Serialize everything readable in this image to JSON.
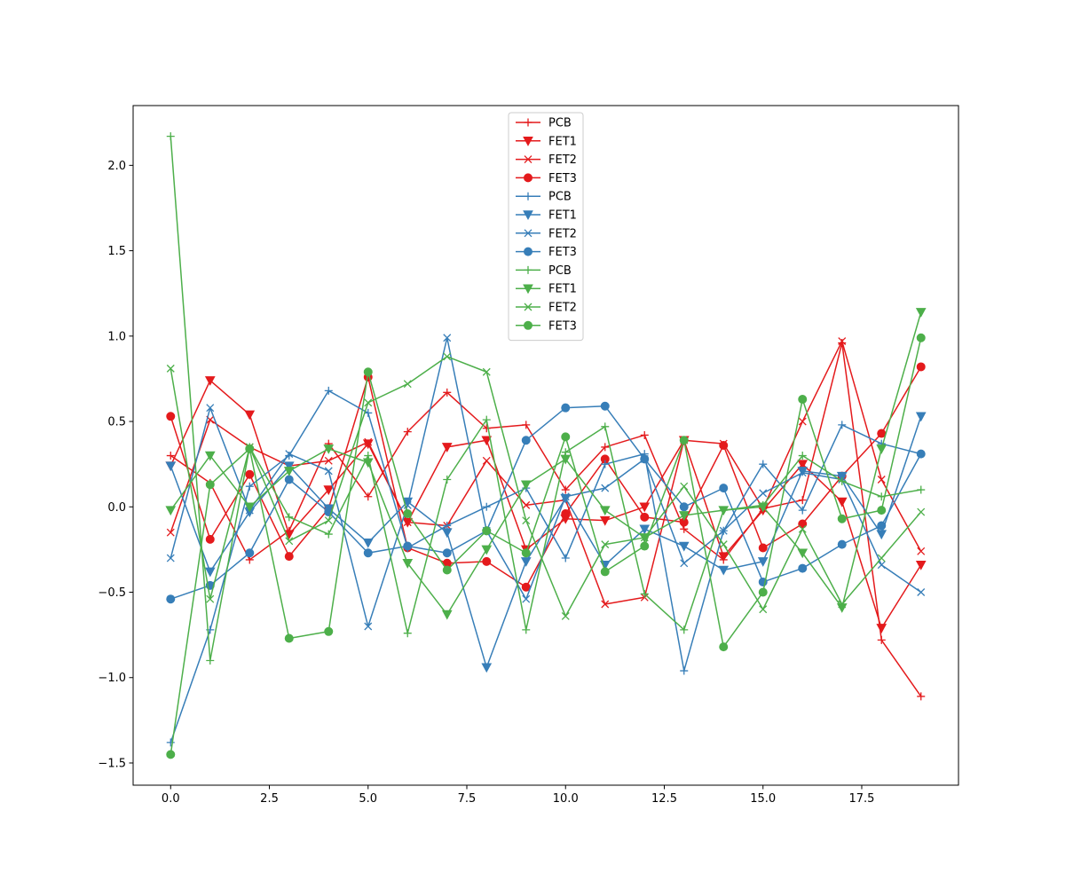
{
  "chart_data": {
    "type": "line",
    "title": "",
    "xlabel": "",
    "ylabel": "",
    "xlim": [
      -0.95,
      19.95
    ],
    "ylim": [
      -1.63,
      2.35
    ],
    "xticks": [
      0.0,
      2.5,
      5.0,
      7.5,
      10.0,
      12.5,
      15.0,
      17.5
    ],
    "xtick_labels": [
      "0.0",
      "2.5",
      "5.0",
      "7.5",
      "10.0",
      "12.5",
      "15.0",
      "17.5"
    ],
    "yticks": [
      -1.5,
      -1.0,
      -0.5,
      0.0,
      0.5,
      1.0,
      1.5,
      2.0
    ],
    "ytick_labels": [
      "−1.5",
      "−1.0",
      "−0.5",
      "0.0",
      "0.5",
      "1.0",
      "1.5",
      "2.0"
    ],
    "grid": false,
    "legend_position": "top-center",
    "x": [
      0,
      1,
      2,
      3,
      4,
      5,
      6,
      7,
      8,
      9,
      10,
      11,
      12,
      13,
      14,
      15,
      16,
      17,
      18,
      19
    ],
    "series": [
      {
        "name": "PCB",
        "color": "#e41a1c",
        "marker": "plus",
        "values": [
          0.3,
          0.14,
          -0.31,
          -0.14,
          0.37,
          0.06,
          0.44,
          0.67,
          0.46,
          0.48,
          0.1,
          0.35,
          0.42,
          -0.13,
          -0.31,
          -0.01,
          0.04,
          0.96,
          -0.78,
          -1.11
        ]
      },
      {
        "name": "FET1",
        "color": "#e41a1c",
        "marker": "triangle-down",
        "values": [
          0.24,
          0.74,
          0.54,
          -0.16,
          0.1,
          0.37,
          -0.09,
          0.35,
          0.39,
          -0.25,
          -0.07,
          -0.08,
          0.0,
          0.39,
          -0.29,
          -0.02,
          0.25,
          0.03,
          -0.71,
          -0.34
        ]
      },
      {
        "name": "FET2",
        "color": "#e41a1c",
        "marker": "x",
        "values": [
          -0.15,
          0.51,
          0.35,
          0.24,
          0.27,
          0.38,
          -0.09,
          -0.11,
          0.27,
          0.01,
          0.04,
          -0.57,
          -0.53,
          0.39,
          0.37,
          -0.01,
          0.5,
          0.97,
          0.16,
          -0.26
        ]
      },
      {
        "name": "FET3",
        "color": "#e41a1c",
        "marker": "circle",
        "values": [
          0.53,
          -0.19,
          0.19,
          -0.29,
          -0.01,
          0.76,
          -0.24,
          -0.33,
          -0.32,
          -0.47,
          -0.04,
          0.28,
          -0.06,
          -0.09,
          0.36,
          -0.24,
          -0.1,
          0.18,
          0.43,
          0.82
        ]
      },
      {
        "name": "PCB",
        "color": "#377eb8",
        "marker": "plus",
        "values": [
          -1.38,
          -0.72,
          0.12,
          0.3,
          0.68,
          0.55,
          -0.24,
          -0.11,
          0.0,
          0.11,
          -0.3,
          0.25,
          0.31,
          -0.96,
          -0.14,
          0.25,
          -0.02,
          0.48,
          0.37,
          0.31
        ]
      },
      {
        "name": "FET1",
        "color": "#377eb8",
        "marker": "triangle-down",
        "values": [
          0.24,
          -0.38,
          -0.03,
          0.24,
          -0.01,
          -0.21,
          0.03,
          -0.15,
          -0.94,
          -0.32,
          0.05,
          -0.34,
          -0.13,
          -0.23,
          -0.37,
          -0.32,
          0.21,
          0.18,
          -0.16,
          0.53
        ]
      },
      {
        "name": "FET2",
        "color": "#377eb8",
        "marker": "x",
        "values": [
          -0.3,
          0.58,
          -0.02,
          0.31,
          0.21,
          -0.7,
          0.01,
          0.99,
          -0.14,
          -0.54,
          0.06,
          0.11,
          0.28,
          -0.33,
          -0.14,
          0.08,
          0.2,
          0.16,
          -0.34,
          -0.5
        ]
      },
      {
        "name": "FET3",
        "color": "#377eb8",
        "marker": "circle",
        "values": [
          -0.54,
          -0.46,
          -0.27,
          0.16,
          -0.03,
          -0.27,
          -0.23,
          -0.27,
          -0.14,
          0.39,
          0.58,
          0.59,
          0.28,
          0.0,
          0.11,
          -0.44,
          -0.36,
          -0.22,
          -0.11,
          0.31
        ]
      },
      {
        "name": "PCB",
        "color": "#4daf4a",
        "marker": "plus",
        "values": [
          2.17,
          -0.9,
          0.35,
          -0.06,
          -0.16,
          0.3,
          -0.74,
          0.16,
          0.51,
          -0.72,
          0.32,
          0.47,
          -0.51,
          -0.72,
          -0.02,
          0.01,
          0.3,
          0.15,
          0.06,
          0.1
        ]
      },
      {
        "name": "FET1",
        "color": "#4daf4a",
        "marker": "triangle-down",
        "values": [
          -0.02,
          0.3,
          0.0,
          0.21,
          0.34,
          0.26,
          -0.33,
          -0.63,
          -0.25,
          0.13,
          0.28,
          -0.02,
          -0.18,
          -0.05,
          -0.02,
          0.0,
          -0.27,
          -0.59,
          0.34,
          1.14
        ]
      },
      {
        "name": "FET2",
        "color": "#4daf4a",
        "marker": "x",
        "values": [
          0.81,
          -0.54,
          0.35,
          -0.2,
          -0.08,
          0.61,
          0.72,
          0.88,
          0.79,
          -0.08,
          -0.64,
          -0.22,
          -0.18,
          0.12,
          -0.22,
          -0.6,
          -0.13,
          -0.57,
          -0.3,
          -0.03
        ]
      },
      {
        "name": "FET3",
        "color": "#4daf4a",
        "marker": "circle",
        "values": [
          -1.45,
          0.13,
          0.34,
          -0.77,
          -0.73,
          0.79,
          -0.04,
          -0.37,
          -0.14,
          -0.27,
          0.41,
          -0.38,
          -0.23,
          0.39,
          -0.82,
          -0.5,
          0.63,
          -0.07,
          -0.02,
          0.99
        ]
      }
    ]
  }
}
